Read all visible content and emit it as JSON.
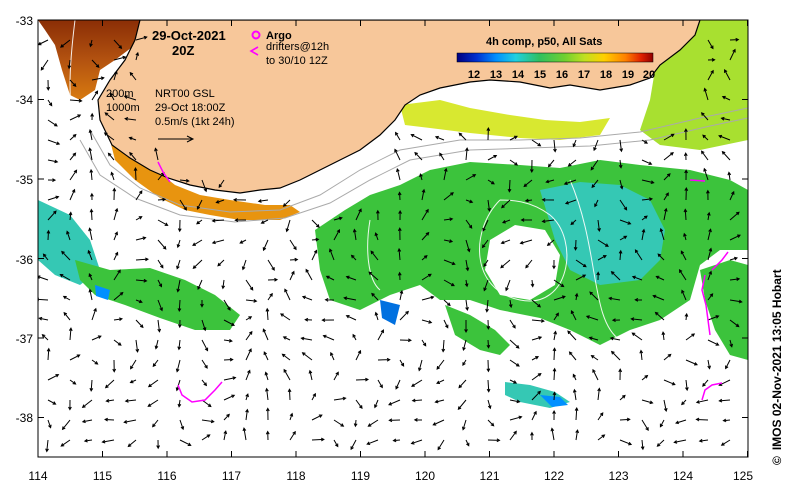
{
  "header": {
    "date": "29-Oct-2021",
    "time": "20Z",
    "argo_label": "Argo",
    "drifters_line1": "drifters@12h",
    "drifters_line2": "to 30/10 12Z",
    "colorbar_title": "4h comp, p50, All Sats"
  },
  "annotations": {
    "depth_200": "200m",
    "depth_1000": "1000m",
    "source": "NRT00 GSL",
    "source_time": "29-Oct 18:00Z",
    "scale": "0.5m/s (1kt 24h)"
  },
  "credit": "IMOS 02-Nov-2021 13:05 Hobart",
  "copyright_symbol": "©",
  "axes": {
    "lon_ticks": [
      "114",
      "115",
      "116",
      "117",
      "118",
      "119",
      "120",
      "121",
      "122",
      "123",
      "124",
      "125"
    ],
    "lat_ticks": [
      "-33",
      "-34",
      "-35",
      "-36",
      "-37",
      "-38"
    ]
  },
  "colorbar": {
    "ticks": [
      "12",
      "13",
      "14",
      "15",
      "16",
      "17",
      "18",
      "19",
      "20"
    ],
    "colors": [
      "#000080",
      "#0030d0",
      "#0090ff",
      "#20d0e0",
      "#30c060",
      "#70d030",
      "#c0e020",
      "#ffd000",
      "#ff8000",
      "#e02000",
      "#900000"
    ]
  },
  "colors": {
    "land": "#f7c79a",
    "coast": "#000000",
    "argo": "#ff00ff",
    "sst_green": "#3cc33c",
    "sst_cyan": "#35c8b4",
    "sst_yellow": "#d8e830",
    "sst_orange": "#e8940f",
    "sst_brown": "#9a3a08"
  }
}
